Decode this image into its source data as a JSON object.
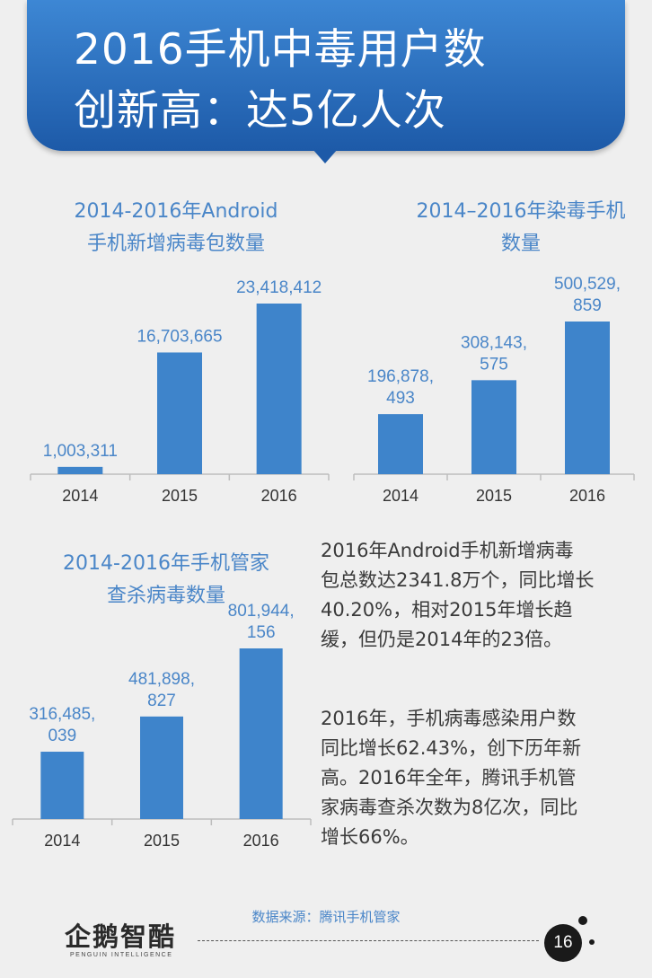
{
  "header": {
    "title_line1": "2016手机中毒用户数",
    "title_line2": "创新高：达5亿人次"
  },
  "chart_data": [
    {
      "type": "bar",
      "title": [
        "2014-2016年Android",
        "手机新增病毒包数量"
      ],
      "categories": [
        "2014",
        "2015",
        "2016"
      ],
      "values": [
        1003311,
        16703665,
        23418412
      ],
      "value_labels": [
        [
          "1,003,311"
        ],
        [
          "16,703,665"
        ],
        [
          "23,418,412"
        ]
      ],
      "color": "#3e84cb"
    },
    {
      "type": "bar",
      "title": [
        "2014–2016年染毒手机",
        "数量"
      ],
      "categories": [
        "2014",
        "2015",
        "2016"
      ],
      "values": [
        196878493,
        308143575,
        500529859
      ],
      "value_labels": [
        [
          "196,878,",
          "493"
        ],
        [
          "308,143,",
          "575"
        ],
        [
          "500,529,",
          "859"
        ]
      ],
      "color": "#3e84cb"
    },
    {
      "type": "bar",
      "title": [
        "2014-2016年手机管家",
        "查杀病毒数量"
      ],
      "categories": [
        "2014",
        "2015",
        "2016"
      ],
      "values": [
        316485039,
        481898827,
        801944156
      ],
      "value_labels": [
        [
          "316,485,",
          "039"
        ],
        [
          "481,898,",
          "827"
        ],
        [
          "801,944,",
          "156"
        ]
      ],
      "color": "#3e84cb"
    }
  ],
  "paragraphs": [
    [
      "2016年Android手机新增病毒",
      "包总数达2341.8万个，同比增长",
      "40.20%，相对2015年增长趋",
      "缓，但仍是2014年的23倍。"
    ],
    [
      "2016年，手机病毒感染用户数",
      "同比增长62.43%，创下历年新",
      "高。2016年全年，腾讯手机管",
      "家病毒查杀次数为8亿次，同比",
      "增长66%。"
    ]
  ],
  "footer": {
    "source": "数据来源：腾讯手机管家",
    "logo_text": "企鹅智酷",
    "logo_subtitle": "PENGUIN INTELLIGENCE",
    "page_number": "16"
  }
}
